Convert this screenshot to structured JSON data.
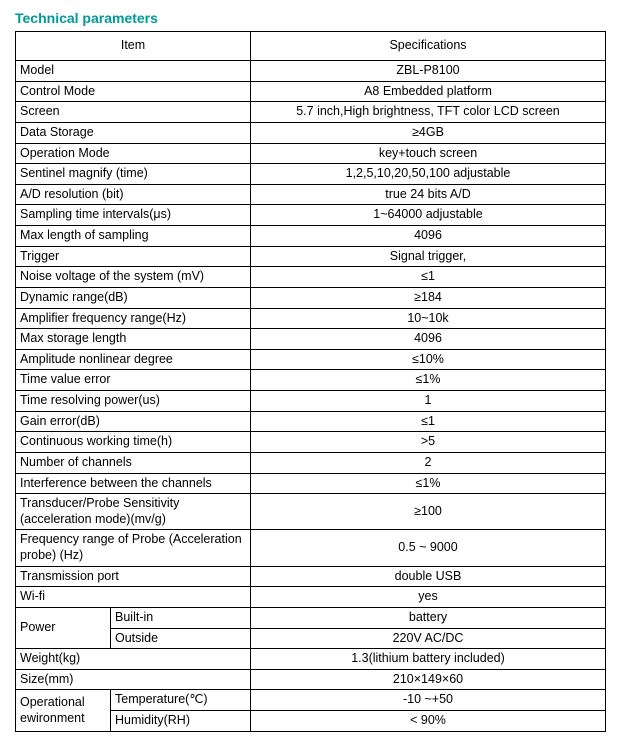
{
  "title": "Technical parameters",
  "headers": {
    "item": "Item",
    "spec": "Specifications"
  },
  "rows": [
    {
      "item": "Model",
      "spec": "ZBL-P8100"
    },
    {
      "item": "Control Mode",
      "spec": "A8 Embedded platform"
    },
    {
      "item": "Screen",
      "spec": "5.7 inch,High brightness, TFT color LCD screen"
    },
    {
      "item": "Data Storage",
      "spec": "≥4GB"
    },
    {
      "item": "Operation Mode",
      "spec": "key+touch screen"
    },
    {
      "item": "Sentinel magnify (time)",
      "spec": "1,2,5,10,20,50,100 adjustable"
    },
    {
      "item": "A/D resolution (bit)",
      "spec": "true 24 bits A/D"
    },
    {
      "item": "Sampling time intervals(μs)",
      "spec": "1~64000 adjustable"
    },
    {
      "item": "Max length of sampling",
      "spec": "4096"
    },
    {
      "item": "Trigger",
      "spec": "Signal trigger,"
    },
    {
      "item": "Noise voltage of the system (mV)",
      "spec": "≤1"
    },
    {
      "item": "Dynamic range(dB)",
      "spec": "≥184"
    },
    {
      "item": "Amplifier frequency range(Hz)",
      "spec": "10~10k"
    },
    {
      "item": "Max storage length",
      "spec": "4096"
    },
    {
      "item": "Amplitude nonlinear degree",
      "spec": "≤10%"
    },
    {
      "item": "Time value error",
      "spec": "≤1%"
    },
    {
      "item": "Time resolving power(us)",
      "spec": "1"
    },
    {
      "item": "Gain error(dB)",
      "spec": "≤1"
    },
    {
      "item": "Continuous working time(h)",
      "spec": ">5"
    },
    {
      "item": "Number of channels",
      "spec": "2"
    },
    {
      "item": "Interference between the channels",
      "spec": "≤1%"
    },
    {
      "item": "Transducer/Probe Sensitivity (acceleration mode)(mv/g)",
      "spec": "≥100"
    },
    {
      "item": "Frequency range of Probe (Acceleration probe) (Hz)",
      "spec": "0.5 ~ 9000"
    },
    {
      "item": "Transmission port",
      "spec": "double USB"
    },
    {
      "item": "Wi-fi",
      "spec": "yes"
    }
  ],
  "power": {
    "label": "Power",
    "builtin": {
      "label": "Built-in",
      "spec": "battery"
    },
    "outside": {
      "label": "Outside",
      "spec": "220V AC/DC"
    }
  },
  "weight": {
    "item": "Weight(kg)",
    "spec": "1.3(lithium battery included)"
  },
  "size": {
    "item": "Size(mm)",
    "spec": "210×149×60"
  },
  "env": {
    "label": "Operational ewironment",
    "temp": {
      "label": "Temperature(℃)",
      "spec": "-10 ~+50"
    },
    "humidity": {
      "label": "Humidity(RH)",
      "spec": "< 90%"
    }
  }
}
